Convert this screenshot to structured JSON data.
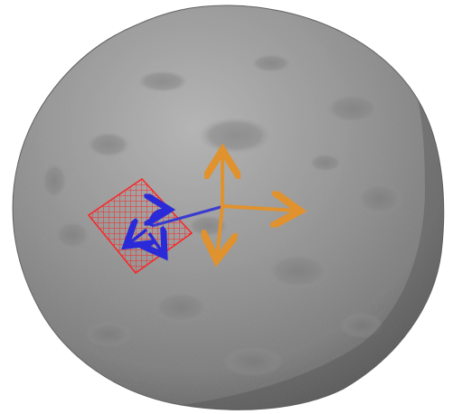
{
  "scene": {
    "background_color": "#ffffff",
    "body_color": "#8f8f8f",
    "body_shadow_color": "#5e5e5e",
    "body_highlight_color": "#b9b9b9",
    "crater_color": "#7a7a7a",
    "grid_color": "#ff2020",
    "body_axes_color": "#e0922e",
    "probe_axes_color": "#2a2ad8",
    "probe_link_color": "#3a3ad0"
  },
  "icons": {
    "body_axes": "orange-orientation-axes-icon",
    "probe_axes": "blue-probe-axes-icon",
    "surface_patch": "red-grid-patch-icon"
  }
}
